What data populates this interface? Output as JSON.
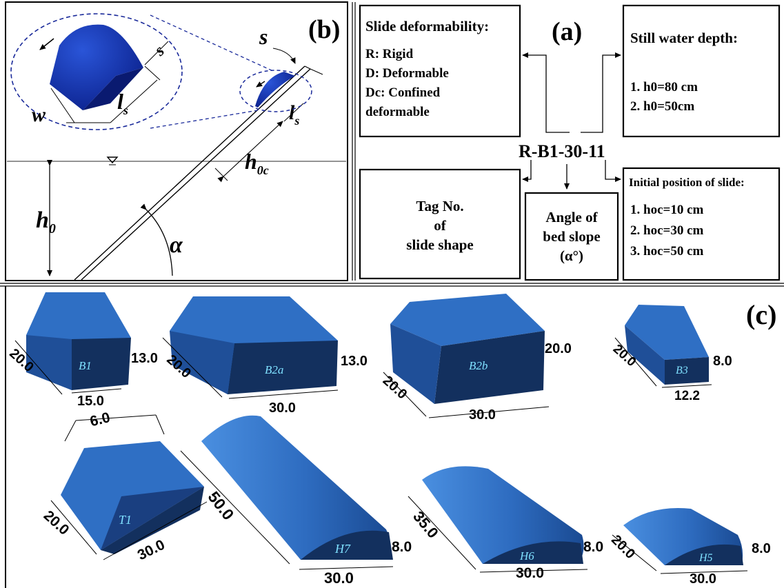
{
  "panel_b": {
    "label": "(b)",
    "sym_s": "s",
    "sym_s_small": "s",
    "sym_w": "w",
    "sym_l": "l",
    "sym_l_sub": "s",
    "sym_h0c": "h",
    "sym_h0c_sub": "0c",
    "sym_h0": "h",
    "sym_h0_sub": "0",
    "sym_alpha": "α"
  },
  "panel_a": {
    "label": "(a)",
    "code": "R-B1-30-11",
    "slide_deformability": {
      "title": "Slide deformability:",
      "lines": [
        "R:  Rigid",
        "D:  Deformable",
        "Dc: Confined",
        "deformable"
      ]
    },
    "still_water_depth": {
      "title": "Still water depth:",
      "lines": [
        "1.  h0=80 cm",
        "2.  h0=50cm"
      ]
    },
    "tag_no": {
      "lines": [
        "Tag No.",
        "of",
        "slide shape"
      ]
    },
    "angle": {
      "lines": [
        "Angle of",
        "bed slope",
        "(α°)"
      ]
    },
    "initial_position": {
      "title": "Initial position of slide:",
      "lines": [
        "1.    hoc=10 cm",
        "2.    hoc=30 cm",
        "3.    hoc=50 cm"
      ]
    }
  },
  "panel_c": {
    "label": "(c)",
    "shapes": [
      {
        "tag": "B1",
        "w": "20.0",
        "l": "15.0",
        "h": "13.0"
      },
      {
        "tag": "B2a",
        "w": "20.0",
        "l": "30.0",
        "h": "13.0"
      },
      {
        "tag": "B2b",
        "w": "20.0",
        "l": "30.0",
        "h": "20.0"
      },
      {
        "tag": "B3",
        "w": "20.0",
        "l": "12.2",
        "h": "8.0"
      },
      {
        "tag": "T1",
        "w": "20.0",
        "l": "30.0",
        "h": "6.0"
      },
      {
        "tag": "H7",
        "w": "50.0",
        "l": "30.0",
        "h": "8.0"
      },
      {
        "tag": "H6",
        "w": "35.0",
        "l": "30.0",
        "h": "8.0"
      },
      {
        "tag": "H5",
        "w": "20.0",
        "l": "30.0",
        "h": "8.0"
      }
    ]
  },
  "colors": {
    "top": "#2f6fc4",
    "front": "#13305e",
    "side": "#1f4f98",
    "tag_text": "#7fe0ff",
    "frame": "#000000"
  }
}
